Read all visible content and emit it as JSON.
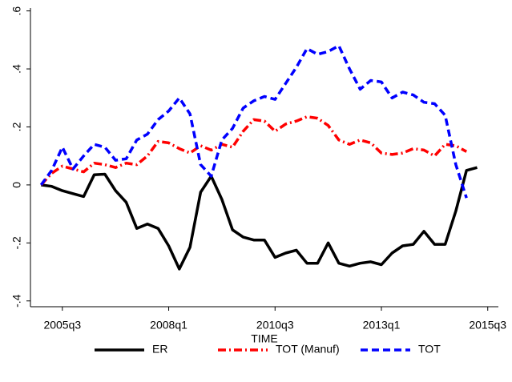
{
  "chart_data": {
    "type": "line",
    "x_label": "TIME",
    "x": [
      "2005q1",
      "2005q2",
      "2005q3",
      "2005q4",
      "2006q1",
      "2006q2",
      "2006q3",
      "2006q4",
      "2007q1",
      "2007q2",
      "2007q3",
      "2007q4",
      "2008q1",
      "2008q2",
      "2008q3",
      "2008q4",
      "2009q1",
      "2009q2",
      "2009q3",
      "2009q4",
      "2010q1",
      "2010q2",
      "2010q3",
      "2010q4",
      "2011q1",
      "2011q2",
      "2011q3",
      "2011q4",
      "2012q1",
      "2012q2",
      "2012q3",
      "2012q4",
      "2013q1",
      "2013q2",
      "2013q3",
      "2013q4",
      "2014q1",
      "2014q2",
      "2014q3",
      "2014q4",
      "2015q1",
      "2015q2"
    ],
    "xlim": [
      "2004q4",
      "2015q4"
    ],
    "xticks": [
      "2005q3",
      "2008q1",
      "2010q3",
      "2013q1",
      "2015q3"
    ],
    "ylim": [
      -0.42,
      0.61
    ],
    "yticks": [
      {
        "value": -0.4,
        "label": "-.4"
      },
      {
        "value": -0.2,
        "label": "-.2"
      },
      0,
      {
        "value": 0.2,
        "label": ".2"
      },
      {
        "value": 0.4,
        "label": ".4"
      },
      {
        "value": 0.6,
        "label": ".6"
      }
    ],
    "legend": "bottom",
    "series": [
      {
        "name": "ER",
        "color": "#000000",
        "dash": "solid",
        "values": [
          0,
          -0.005,
          -0.02,
          -0.03,
          -0.04,
          0.035,
          0.037,
          -0.02,
          -0.06,
          -0.15,
          -0.135,
          -0.15,
          -0.21,
          -0.29,
          -0.215,
          -0.025,
          0.03,
          -0.05,
          -0.155,
          -0.18,
          -0.19,
          -0.19,
          -0.25,
          -0.235,
          -0.225,
          -0.27,
          -0.27,
          -0.2,
          -0.27,
          -0.28,
          -0.27,
          -0.265,
          -0.275,
          -0.235,
          -0.21,
          -0.205,
          -0.16,
          -0.205,
          -0.205,
          -0.09,
          0.05,
          0.06
        ]
      },
      {
        "name": "TOT (Manuf)",
        "color": "#ff0000",
        "dash": "dashdot",
        "values": [
          0,
          0.04,
          0.065,
          0.055,
          0.045,
          0.075,
          0.07,
          0.06,
          0.075,
          0.07,
          0.1,
          0.15,
          0.145,
          0.125,
          0.11,
          0.135,
          0.12,
          0.14,
          0.13,
          0.185,
          0.225,
          0.22,
          0.185,
          0.21,
          0.22,
          0.235,
          0.23,
          0.205,
          0.155,
          0.14,
          0.155,
          0.145,
          0.11,
          0.105,
          0.11,
          0.125,
          0.12,
          0.1,
          0.14,
          0.135,
          0.115,
          null
        ]
      },
      {
        "name": "TOT",
        "color": "#0000ff",
        "dash": "dash",
        "values": [
          0,
          0.05,
          0.13,
          0.055,
          0.1,
          0.14,
          0.13,
          0.085,
          0.09,
          0.155,
          0.175,
          0.225,
          0.255,
          0.3,
          0.245,
          0.07,
          0.03,
          0.155,
          0.195,
          0.265,
          0.29,
          0.305,
          0.295,
          0.35,
          0.405,
          0.47,
          0.45,
          0.46,
          0.48,
          0.4,
          0.33,
          0.36,
          0.355,
          0.3,
          0.32,
          0.31,
          0.285,
          0.28,
          0.24,
          0.07,
          -0.045,
          null
        ]
      }
    ]
  }
}
